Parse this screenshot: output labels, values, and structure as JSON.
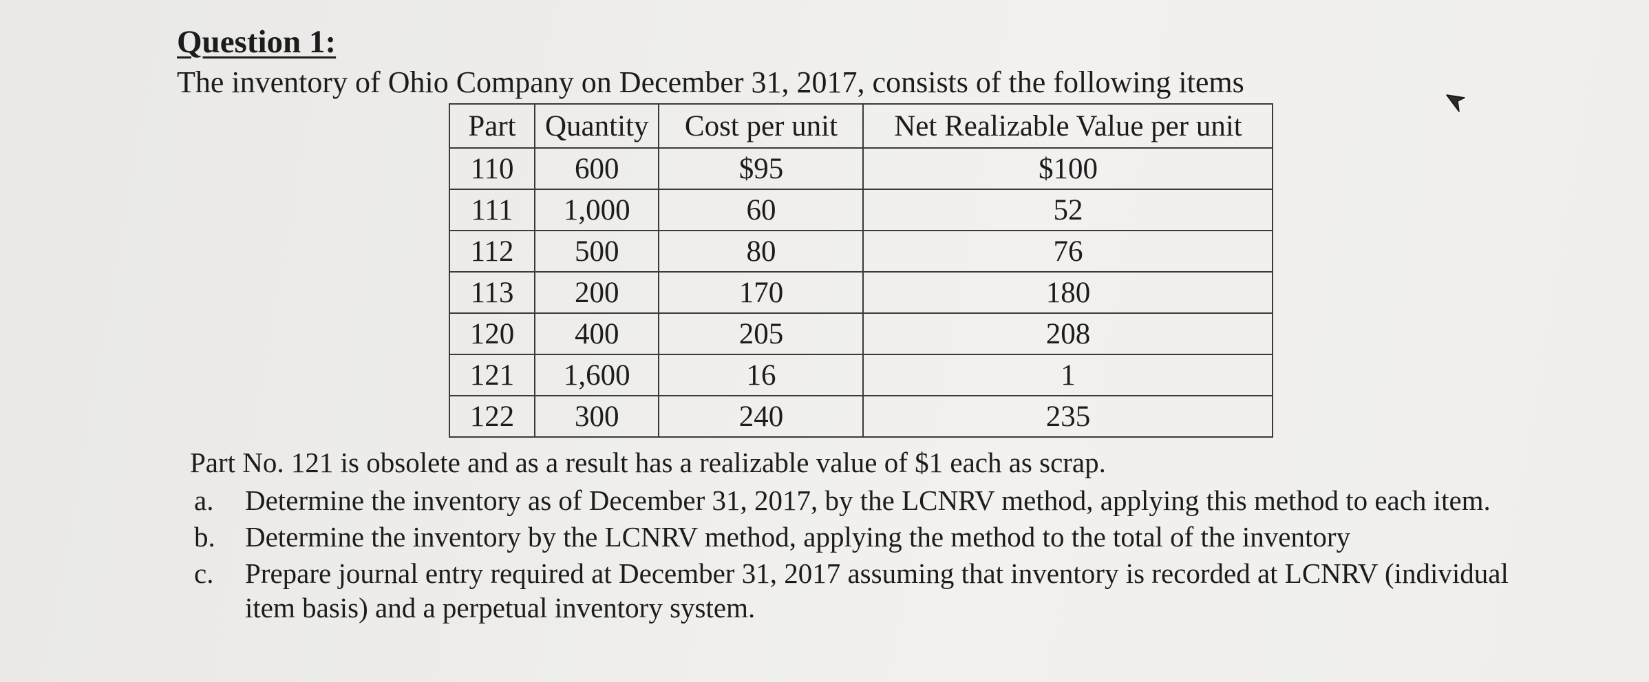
{
  "question": {
    "title": "Question 1:",
    "intro": "The inventory of Ohio Company on December 31, 2017, consists of the following items"
  },
  "table": {
    "headers": [
      "Part",
      "Quantity",
      "Cost per unit",
      "Net Realizable Value per unit"
    ],
    "rows": [
      [
        "110",
        "600",
        "$95",
        "$100"
      ],
      [
        "111",
        "1,000",
        "60",
        "52"
      ],
      [
        "112",
        "500",
        "80",
        "76"
      ],
      [
        "113",
        "200",
        "170",
        "180"
      ],
      [
        "120",
        "400",
        "205",
        "208"
      ],
      [
        "121",
        "1,600",
        "16",
        "1"
      ],
      [
        "122",
        "300",
        "240",
        "235"
      ]
    ]
  },
  "note": "Part No. 121 is obsolete and as a result has a realizable value of $1 each as scrap.",
  "tasks": [
    {
      "marker": "a.",
      "text": "Determine the inventory as of December 31, 2017, by the LCNRV method, applying this method to each item."
    },
    {
      "marker": "b.",
      "text": "Determine the inventory by the LCNRV method, applying the method to the total of the inventory"
    },
    {
      "marker": "c.",
      "text": "Prepare journal entry required at December 31, 2017 assuming that inventory is recorded at LCNRV (individual item basis) and a perpetual inventory system."
    }
  ],
  "icons": {
    "cursor": "mouse-pointer-icon"
  }
}
